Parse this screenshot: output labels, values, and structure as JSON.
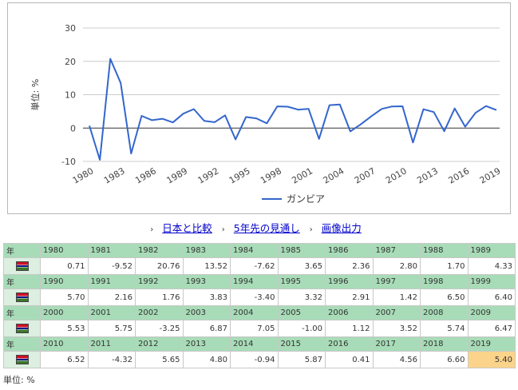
{
  "chart_data": {
    "type": "line",
    "ylabel": "単位: %",
    "ylim": [
      -10,
      30
    ],
    "yticks": [
      -10,
      0,
      10,
      20,
      30
    ],
    "xticks": [
      1980,
      1983,
      1986,
      1989,
      1992,
      1995,
      1998,
      2001,
      2004,
      2007,
      2010,
      2013,
      2016,
      2019
    ],
    "grid": true,
    "legend": "bottom",
    "series": [
      {
        "name": "ガンビア",
        "color": "#3366cc",
        "x": [
          1980,
          1981,
          1982,
          1983,
          1984,
          1985,
          1986,
          1987,
          1988,
          1989,
          1990,
          1991,
          1992,
          1993,
          1994,
          1995,
          1996,
          1997,
          1998,
          1999,
          2000,
          2001,
          2002,
          2003,
          2004,
          2005,
          2006,
          2007,
          2008,
          2009,
          2010,
          2011,
          2012,
          2013,
          2014,
          2015,
          2016,
          2017,
          2018,
          2019
        ],
        "values": [
          0.71,
          -9.52,
          20.76,
          13.52,
          -7.62,
          3.65,
          2.36,
          2.8,
          1.7,
          4.33,
          5.7,
          2.16,
          1.76,
          3.83,
          -3.4,
          3.32,
          2.91,
          1.42,
          6.5,
          6.4,
          5.53,
          5.75,
          -3.25,
          6.87,
          7.05,
          -1.0,
          1.12,
          3.52,
          5.74,
          6.47,
          6.52,
          -4.32,
          5.65,
          4.8,
          -0.94,
          5.87,
          0.41,
          4.56,
          6.6,
          5.4
        ]
      }
    ]
  },
  "links": {
    "compare": "日本と比較",
    "forecast": "5年先の見通し",
    "image": "画像出力"
  },
  "table": {
    "year_label": "年",
    "highlight_year": 2019,
    "rows": [
      {
        "years": [
          "1980",
          "1981",
          "1982",
          "1983",
          "1984",
          "1985",
          "1986",
          "1987",
          "1988",
          "1989"
        ],
        "values": [
          "0.71",
          "-9.52",
          "20.76",
          "13.52",
          "-7.62",
          "3.65",
          "2.36",
          "2.80",
          "1.70",
          "4.33"
        ]
      },
      {
        "years": [
          "1990",
          "1991",
          "1992",
          "1993",
          "1994",
          "1995",
          "1996",
          "1997",
          "1998",
          "1999"
        ],
        "values": [
          "5.70",
          "2.16",
          "1.76",
          "3.83",
          "-3.40",
          "3.32",
          "2.91",
          "1.42",
          "6.50",
          "6.40"
        ]
      },
      {
        "years": [
          "2000",
          "2001",
          "2002",
          "2003",
          "2004",
          "2005",
          "2006",
          "2007",
          "2008",
          "2009"
        ],
        "values": [
          "5.53",
          "5.75",
          "-3.25",
          "6.87",
          "7.05",
          "-1.00",
          "1.12",
          "3.52",
          "5.74",
          "6.47"
        ]
      },
      {
        "years": [
          "2010",
          "2011",
          "2012",
          "2013",
          "2014",
          "2015",
          "2016",
          "2017",
          "2018",
          "2019"
        ],
        "values": [
          "6.52",
          "-4.32",
          "5.65",
          "4.80",
          "-0.94",
          "5.87",
          "0.41",
          "4.56",
          "6.60",
          "5.40"
        ]
      }
    ]
  },
  "unit_note": "単位: %",
  "flag_colors": [
    "#ce1126",
    "#ffffff",
    "#0c1c8c",
    "#ffffff",
    "#3a7728"
  ]
}
